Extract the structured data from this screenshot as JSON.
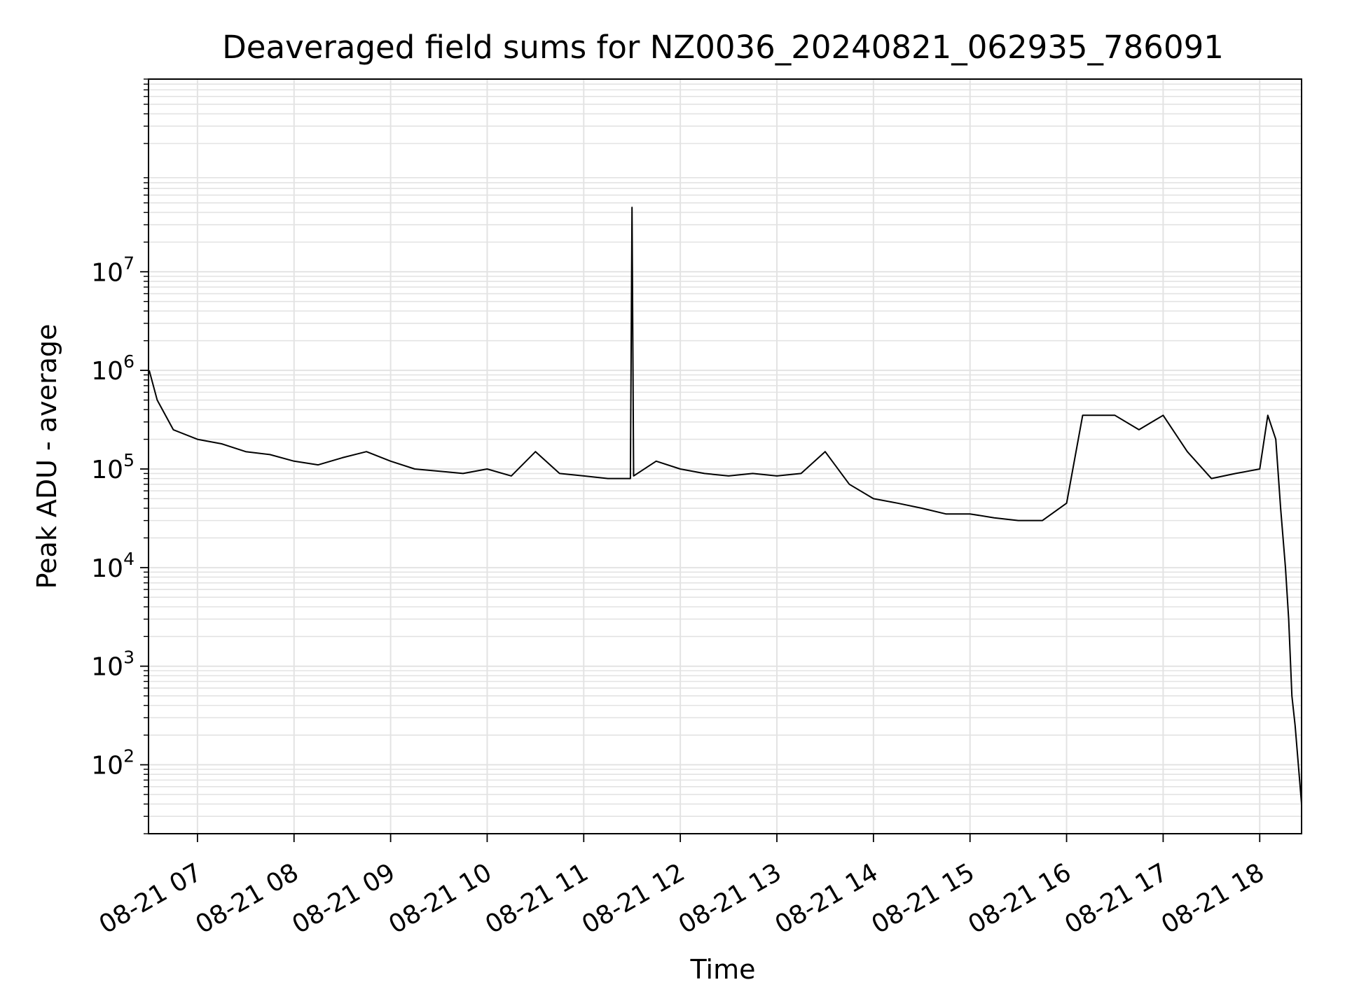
{
  "chart_data": {
    "type": "line",
    "title": "Deaveraged field sums for NZ0036_20240821_062935_786091",
    "xlabel": "Time",
    "ylabel": "Peak ADU - average",
    "x_scale": "time",
    "y_scale": "log",
    "xlim": [
      "2024-08-21 06:29:35",
      "2024-08-21 18:26:00"
    ],
    "ylim": [
      20,
      900000000
    ],
    "grid": "on (major and minor)",
    "line_color": "#000000",
    "grid_color": "#e3e3e3",
    "x_tick_labels": [
      "08-21 07",
      "08-21 08",
      "08-21 09",
      "08-21 10",
      "08-21 11",
      "08-21 12",
      "08-21 13",
      "08-21 14",
      "08-21 15",
      "08-21 16",
      "08-21 17",
      "08-21 18"
    ],
    "y_tick_labels": [
      {
        "base": "10",
        "exp": "2",
        "value": 100
      },
      {
        "base": "10",
        "exp": "3",
        "value": 1000
      },
      {
        "base": "10",
        "exp": "4",
        "value": 10000
      },
      {
        "base": "10",
        "exp": "5",
        "value": 100000
      },
      {
        "base": "10",
        "exp": "6",
        "value": 1000000
      },
      {
        "base": "10",
        "exp": "7",
        "value": 10000000
      }
    ],
    "series": [
      {
        "x": [
          "2024-08-21 06:30",
          "2024-08-21 06:35",
          "2024-08-21 06:45",
          "2024-08-21 07:00",
          "2024-08-21 07:15",
          "2024-08-21 07:30",
          "2024-08-21 07:45",
          "2024-08-21 08:00",
          "2024-08-21 08:15",
          "2024-08-21 08:30",
          "2024-08-21 08:45",
          "2024-08-21 09:00",
          "2024-08-21 09:15",
          "2024-08-21 09:30",
          "2024-08-21 09:45",
          "2024-08-21 10:00",
          "2024-08-21 10:15",
          "2024-08-21 10:30",
          "2024-08-21 10:45",
          "2024-08-21 11:00",
          "2024-08-21 11:15",
          "2024-08-21 11:29",
          "2024-08-21 11:30",
          "2024-08-21 11:31",
          "2024-08-21 11:45",
          "2024-08-21 12:00",
          "2024-08-21 12:15",
          "2024-08-21 12:30",
          "2024-08-21 12:45",
          "2024-08-21 13:00",
          "2024-08-21 13:15",
          "2024-08-21 13:30",
          "2024-08-21 13:45",
          "2024-08-21 14:00",
          "2024-08-21 14:15",
          "2024-08-21 14:30",
          "2024-08-21 14:45",
          "2024-08-21 15:00",
          "2024-08-21 15:15",
          "2024-08-21 15:30",
          "2024-08-21 15:45",
          "2024-08-21 16:00",
          "2024-08-21 16:10",
          "2024-08-21 16:30",
          "2024-08-21 16:45",
          "2024-08-21 17:00",
          "2024-08-21 17:15",
          "2024-08-21 17:30",
          "2024-08-21 17:45",
          "2024-08-21 18:00",
          "2024-08-21 18:05",
          "2024-08-21 18:10",
          "2024-08-21 18:13",
          "2024-08-21 18:16",
          "2024-08-21 18:18",
          "2024-08-21 18:20",
          "2024-08-21 18:22",
          "2024-08-21 18:24",
          "2024-08-21 18:26"
        ],
        "y": [
          1000000,
          500000,
          250000,
          200000,
          180000,
          150000,
          140000,
          120000,
          110000,
          130000,
          150000,
          120000,
          100000,
          95000,
          90000,
          100000,
          85000,
          150000,
          90000,
          85000,
          80000,
          80000,
          45000000,
          85000,
          120000,
          100000,
          90000,
          85000,
          90000,
          85000,
          90000,
          150000,
          70000,
          50000,
          45000,
          40000,
          35000,
          35000,
          32000,
          30000,
          30000,
          45000,
          350000,
          350000,
          250000,
          350000,
          150000,
          80000,
          90000,
          100000,
          350000,
          200000,
          40000,
          10000,
          3000,
          500,
          250,
          100,
          40
        ]
      }
    ]
  }
}
